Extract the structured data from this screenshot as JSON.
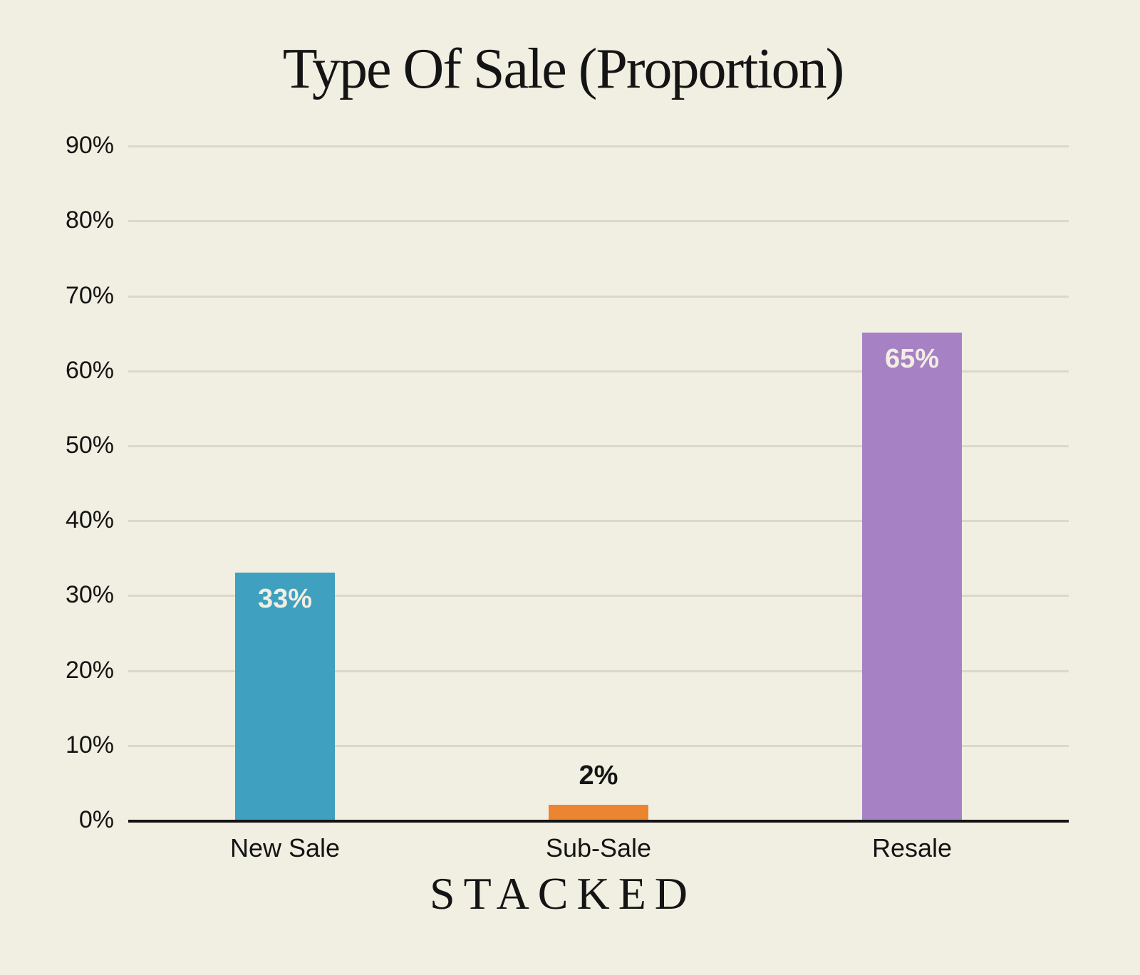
{
  "title": "Type Of Sale (Proportion)",
  "branding": {
    "text": "STACKED"
  },
  "colors": {
    "background": "#f1eee2",
    "gridline": "#dcd8c9",
    "axis": "#141414",
    "text": "#141414",
    "bar_label_light": "#f1eee2",
    "bar_label_dark": "#141414"
  },
  "chart_data": {
    "type": "bar",
    "title": "Type Of Sale (Proportion)",
    "categories": [
      "New Sale",
      "Sub-Sale",
      "Resale"
    ],
    "values": [
      33,
      2,
      65
    ],
    "bar_labels": [
      "33%",
      "2%",
      "65%"
    ],
    "bar_colors": [
      "#3fa0bf",
      "#ec8531",
      "#a681c4"
    ],
    "bar_label_placement": [
      "inside",
      "above",
      "inside"
    ],
    "xlabel": "",
    "ylabel": "",
    "ylim": [
      0,
      90
    ],
    "ytick_step": 10,
    "ytick_labels": [
      "0%",
      "10%",
      "20%",
      "30%",
      "40%",
      "50%",
      "60%",
      "70%",
      "80%",
      "90%"
    ],
    "grid": true,
    "legend": false
  }
}
